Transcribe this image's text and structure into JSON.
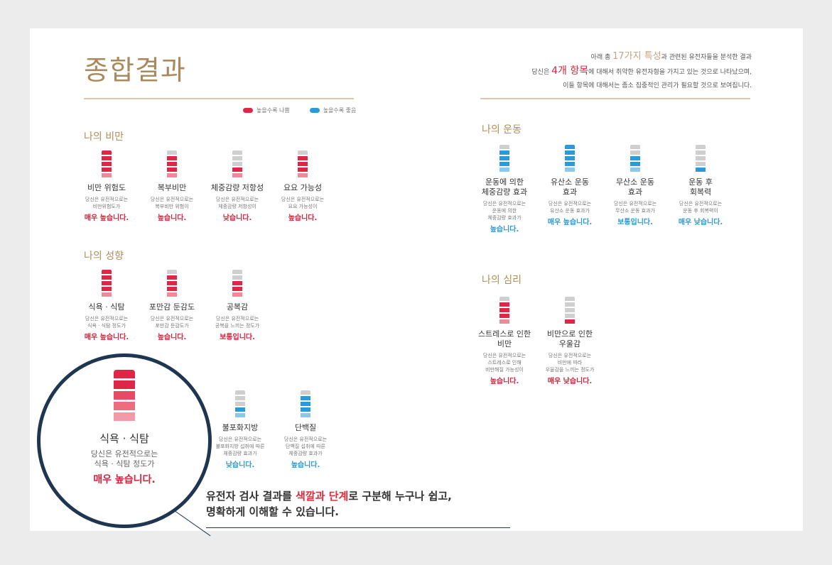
{
  "title": "종합결과",
  "intro": {
    "line1_pre": "아래 총 ",
    "line1_hl": "17가지 특성",
    "line1_post": "과 관련된 유전자들을 분석한 결과",
    "line2_pre": "당신은 ",
    "line2_hl": "4개 항목",
    "line2_post": "에 대해서 취약한 유전자형을 가지고 있는 것으로 나타났으며,",
    "line3": "이들 항목에 대해서는 좀소 집중적인 관리가 필요할 것으로 보여집니다."
  },
  "legend": [
    {
      "label": "높을수록 나쁨",
      "color": "#e02647"
    },
    {
      "label": "높을수록 좋음",
      "color": "#2a9ad9"
    }
  ],
  "colors": {
    "red": "#e02647",
    "red_light": "#f08a9a",
    "blue": "#2a9ad9",
    "blue_light": "#8cc8ec",
    "gray": "#cfcfcf"
  },
  "sections": {
    "obesity": {
      "title": "나의 비만",
      "items": [
        {
          "name": "비만 위험도",
          "desc": [
            "당신은 유전적으로는",
            "비만위험도가"
          ],
          "result": "매우 높습니다.",
          "tone": "red",
          "level": 5
        },
        {
          "name": "복부비만",
          "desc": [
            "당신은 유전적으로는",
            "복부비만 위험이"
          ],
          "result": "높습니다.",
          "tone": "red",
          "level": 4
        },
        {
          "name": "체중감량 저항성",
          "desc": [
            "당신은 유전적으로는",
            "체중감량 저항성이"
          ],
          "result": "낮습니다.",
          "tone": "red",
          "level": 2
        },
        {
          "name": "요요 가능성",
          "desc": [
            "당신은 유전적으로는",
            "요요 가능성이"
          ],
          "result": "높습니다.",
          "tone": "red",
          "level": 4
        }
      ]
    },
    "tendency": {
      "title": "나의 성향",
      "items": [
        {
          "name": "식욕 · 식탐",
          "desc": [
            "당신은 유전적으로는",
            "식욕 · 식탐 정도가"
          ],
          "result": "매우 높습니다.",
          "tone": "red",
          "level": 5
        },
        {
          "name": "포만감 둔감도",
          "desc": [
            "당신은 유전적으로는",
            "포만감 둔감도가"
          ],
          "result": "높습니다.",
          "tone": "red",
          "level": 4
        },
        {
          "name": "공복감",
          "desc": [
            "당신은 유전적으로는",
            "공복을 느끼는 정도가"
          ],
          "result": "보통입니다.",
          "tone": "red",
          "level": 3
        }
      ]
    },
    "nutrition": {
      "items": [
        {
          "name": "불포화지방",
          "desc": [
            "당신은 유전적으로는",
            "불포화지방 섭취에 따른",
            "체중감량 효과가"
          ],
          "result": "낮습니다.",
          "tone": "blue",
          "level": 2
        },
        {
          "name": "단백질",
          "desc": [
            "당신은 유전적으로는",
            "단백질 섭취에 따른",
            "체중감량 효과가"
          ],
          "result": "높습니다.",
          "tone": "blue",
          "level": 4
        }
      ]
    },
    "exercise": {
      "title": "나의 운동",
      "items": [
        {
          "name": [
            "운동에 의한",
            "체중감량 효과"
          ],
          "desc": [
            "당신은 유전적으로는",
            "운동에 의한",
            "체중감량 효과가"
          ],
          "result": "높습니다.",
          "tone": "blue",
          "level": 4
        },
        {
          "name": [
            "유산소 운동",
            "효과"
          ],
          "desc": [
            "당신은 유전적으로는",
            "유산소 운동 효과가"
          ],
          "result": "매우 높습니다.",
          "tone": "blue",
          "level": 5
        },
        {
          "name": [
            "무산소 운동",
            "효과"
          ],
          "desc": [
            "당신은 유전적으로는",
            "무산소 운동 효과가"
          ],
          "result": "보통입니다.",
          "tone": "blue",
          "level": 3
        },
        {
          "name": [
            "운동 후",
            "회복력"
          ],
          "desc": [
            "당신은 유전적으로는",
            "운동 후 회복력이"
          ],
          "result": "매우 낮습니다.",
          "tone": "blue",
          "level": 1
        }
      ]
    },
    "psychology": {
      "title": "나의 심리",
      "items": [
        {
          "name": [
            "스트레스로 인한",
            "비만"
          ],
          "desc": [
            "당신은 유전적으로는",
            "스트레스로 인해",
            "비만해질 가능성이"
          ],
          "result": "높습니다.",
          "tone": "red",
          "level": 4
        },
        {
          "name": [
            "비만으로 인한",
            "우울감"
          ],
          "desc": [
            "당신은 유전적으로는",
            "비만에 따라",
            "우울감을 느끼는 정도가"
          ],
          "result": "매우 낮습니다.",
          "tone": "red",
          "level": 1
        }
      ]
    }
  },
  "highlight": {
    "name": "식욕 · 식탐",
    "desc1": "당신은 유전적으로는",
    "desc2": "식욕 · 식탐 정도가",
    "result": "매우 높습니다."
  },
  "caption": {
    "pre": "유전자 검사 결과를 ",
    "hl": "색깔과 단계",
    "post": "로 구분해 누구나 쉽고,",
    "line2": "명확하게 이해할 수 있습니다."
  }
}
